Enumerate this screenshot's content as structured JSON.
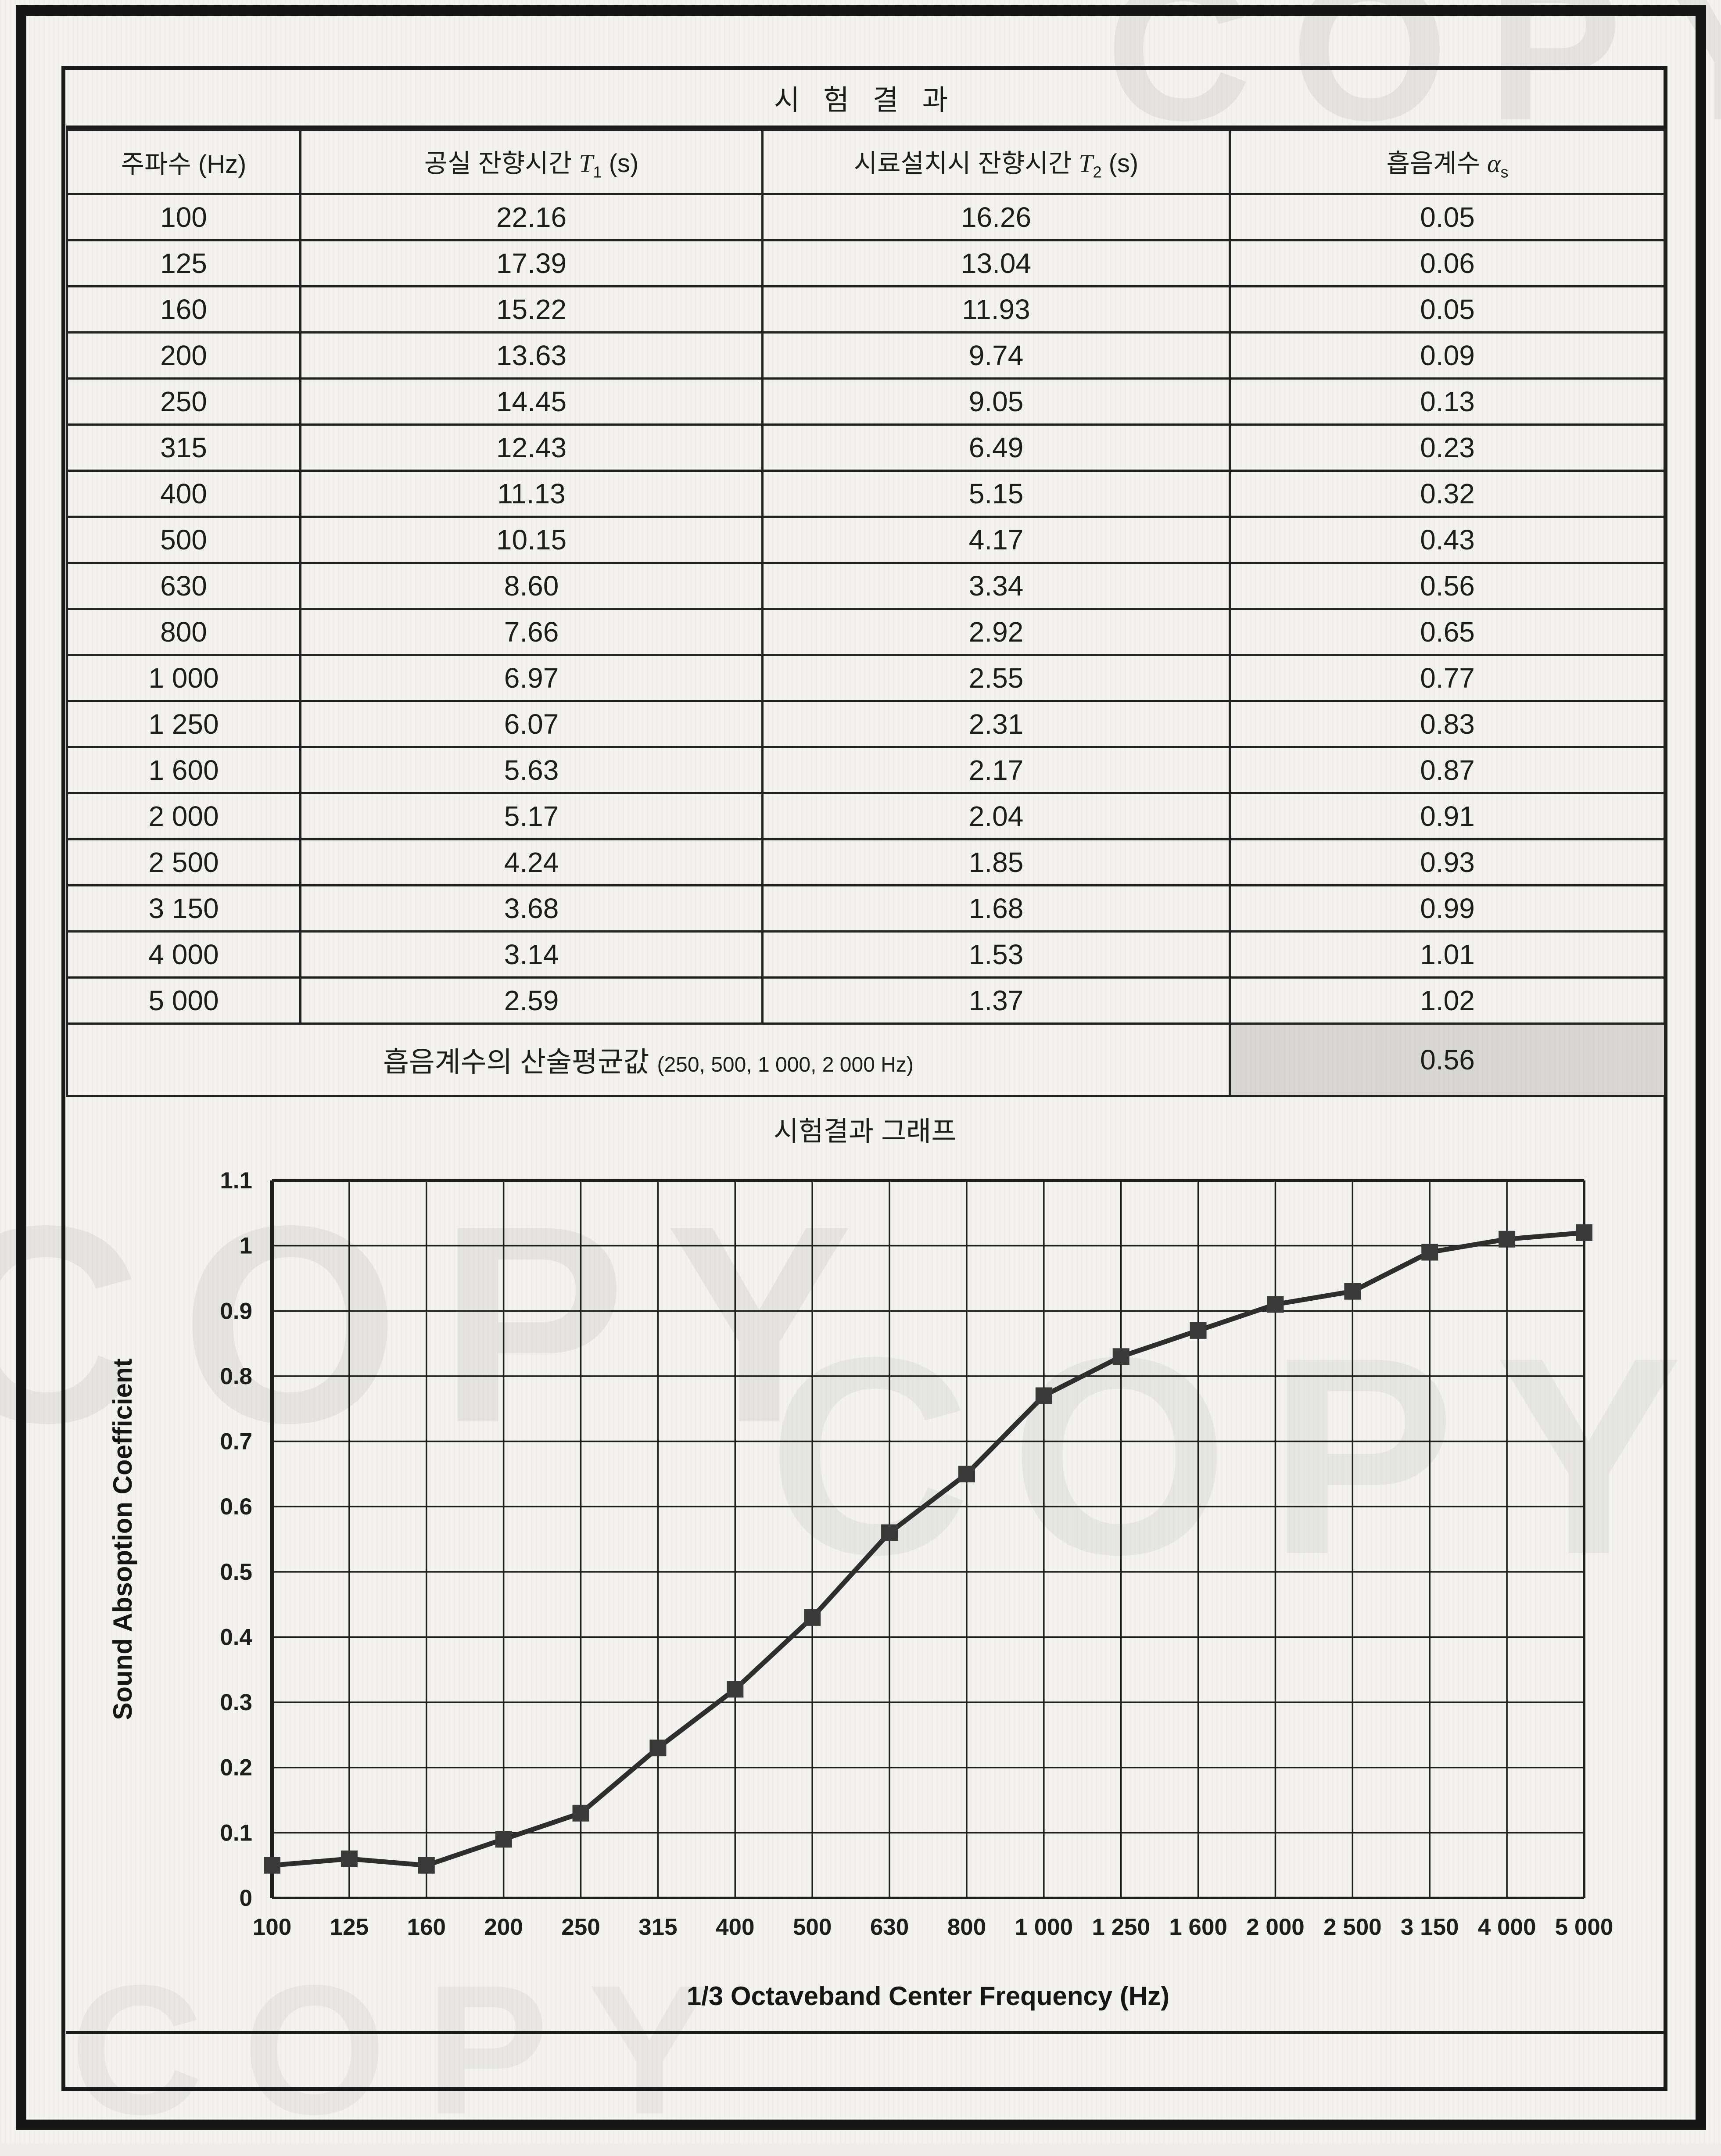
{
  "page": {
    "title": "시 험 결 과",
    "chart_section_title": "시험결과 그래프"
  },
  "scan": {
    "watermark": "COPY"
  },
  "table": {
    "headers": {
      "freq": "주파수 (Hz)",
      "t1": {
        "label": "공실 잔향시간",
        "sym": "T",
        "sub": "1",
        "unit": "(s)"
      },
      "t2": {
        "label": "시료설치시 잔향시간",
        "sym": "T",
        "sub": "2",
        "unit": "(s)"
      },
      "alpha": {
        "label": "흡음계수",
        "sym": "α",
        "sub": "s"
      }
    },
    "rows": [
      {
        "freq": "100",
        "t1": "22.16",
        "t2": "16.26",
        "alpha": "0.05"
      },
      {
        "freq": "125",
        "t1": "17.39",
        "t2": "13.04",
        "alpha": "0.06"
      },
      {
        "freq": "160",
        "t1": "15.22",
        "t2": "11.93",
        "alpha": "0.05"
      },
      {
        "freq": "200",
        "t1": "13.63",
        "t2": "9.74",
        "alpha": "0.09"
      },
      {
        "freq": "250",
        "t1": "14.45",
        "t2": "9.05",
        "alpha": "0.13"
      },
      {
        "freq": "315",
        "t1": "12.43",
        "t2": "6.49",
        "alpha": "0.23"
      },
      {
        "freq": "400",
        "t1": "11.13",
        "t2": "5.15",
        "alpha": "0.32"
      },
      {
        "freq": "500",
        "t1": "10.15",
        "t2": "4.17",
        "alpha": "0.43"
      },
      {
        "freq": "630",
        "t1": "8.60",
        "t2": "3.34",
        "alpha": "0.56"
      },
      {
        "freq": "800",
        "t1": "7.66",
        "t2": "2.92",
        "alpha": "0.65"
      },
      {
        "freq": "1 000",
        "t1": "6.97",
        "t2": "2.55",
        "alpha": "0.77"
      },
      {
        "freq": "1 250",
        "t1": "6.07",
        "t2": "2.31",
        "alpha": "0.83"
      },
      {
        "freq": "1 600",
        "t1": "5.63",
        "t2": "2.17",
        "alpha": "0.87"
      },
      {
        "freq": "2 000",
        "t1": "5.17",
        "t2": "2.04",
        "alpha": "0.91"
      },
      {
        "freq": "2 500",
        "t1": "4.24",
        "t2": "1.85",
        "alpha": "0.93"
      },
      {
        "freq": "3 150",
        "t1": "3.68",
        "t2": "1.68",
        "alpha": "0.99"
      },
      {
        "freq": "4 000",
        "t1": "3.14",
        "t2": "1.53",
        "alpha": "1.01"
      },
      {
        "freq": "5 000",
        "t1": "2.59",
        "t2": "1.37",
        "alpha": "1.02"
      }
    ],
    "summary": {
      "label": "흡음계수의 산술평균값",
      "detail": "(250, 500, 1 000, 2 000 Hz)",
      "value": "0.56"
    }
  },
  "chart_data": {
    "type": "line",
    "title": "시험결과 그래프",
    "categories": [
      "100",
      "125",
      "160",
      "200",
      "250",
      "315",
      "400",
      "500",
      "630",
      "800",
      "1 000",
      "1 250",
      "1 600",
      "2 000",
      "2 500",
      "3 150",
      "4 000",
      "5 000"
    ],
    "values": [
      0.05,
      0.06,
      0.05,
      0.09,
      0.13,
      0.23,
      0.32,
      0.43,
      0.56,
      0.65,
      0.77,
      0.83,
      0.87,
      0.91,
      0.93,
      0.99,
      1.01,
      1.02
    ],
    "xlabel": "1/3 Octaveband Center Frequency (Hz)",
    "ylabel": "Sound Absoption Coefficient",
    "ylim": [
      0,
      1.1
    ],
    "ytick_step": 0.1,
    "grid": true,
    "legend": false,
    "marker": "square",
    "line_color": "#2e2e2e",
    "marker_color": "#3a3a3a",
    "grid_color": "#1f1f1f"
  }
}
